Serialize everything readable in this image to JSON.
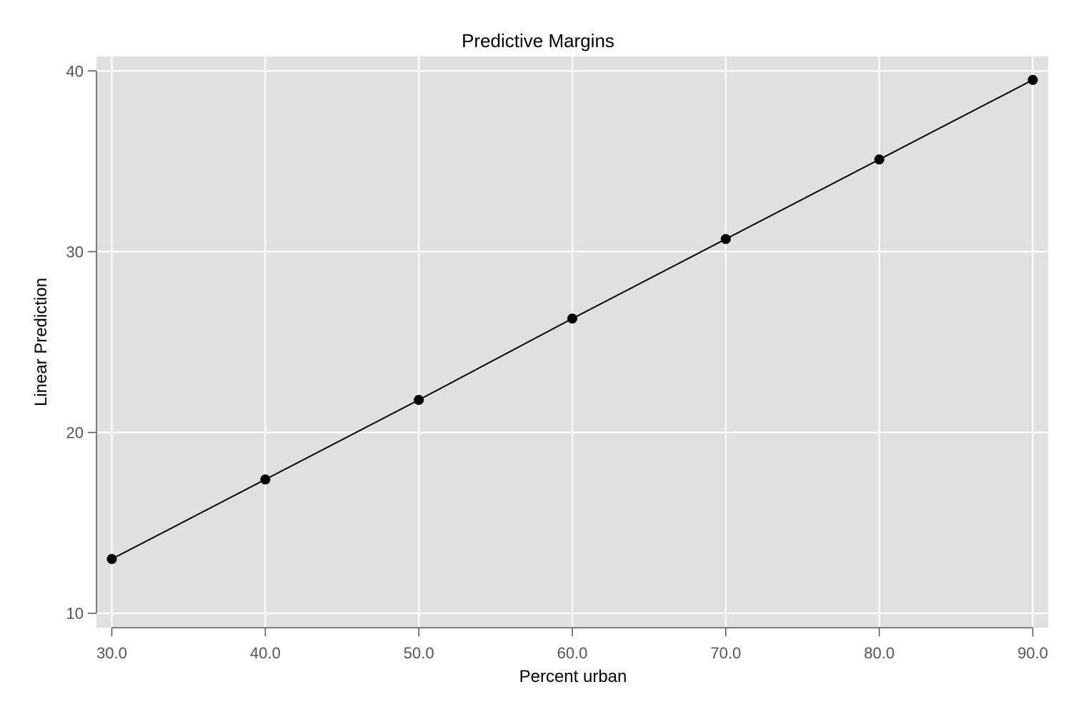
{
  "chart_data": {
    "type": "line",
    "title": "Predictive Margins",
    "xlabel": "Percent urban",
    "ylabel": "Linear Prediction",
    "x": [
      30,
      40,
      50,
      60,
      70,
      80,
      90
    ],
    "series": [
      {
        "values": [
          13.0,
          17.4,
          21.8,
          26.3,
          30.7,
          35.1,
          39.5
        ]
      }
    ],
    "xlim": [
      29,
      91
    ],
    "ylim": [
      9.2,
      40.8
    ],
    "x_ticks": [
      30,
      40,
      50,
      60,
      70,
      80,
      90
    ],
    "x_tick_labels": [
      "30.0",
      "40.0",
      "50.0",
      "60.0",
      "70.0",
      "80.0",
      "90.0"
    ],
    "y_ticks": [
      10,
      20,
      30,
      40
    ],
    "y_tick_labels": [
      "10",
      "20",
      "30",
      "40"
    ],
    "grid": true,
    "colors": {
      "plot_background": "#e0e0e0",
      "grid": "#ffffff",
      "line": "#000000",
      "marker": "#000000",
      "tick_label": "#555555"
    }
  }
}
